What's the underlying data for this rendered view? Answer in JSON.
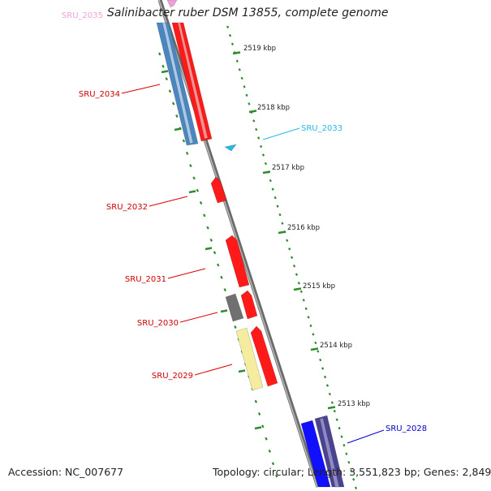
{
  "title": "Salinibacter ruber DSM 13855, complete genome",
  "footer": {
    "accession": "Accession: NC_007677",
    "summary": "Topology: circular; Length: 3,551,823 bp; Genes: 2,849"
  },
  "colors": {
    "backbone": "#8a8a8a",
    "tick_green": "#2e8b2e",
    "gene_red": "#ff1a1a",
    "gene_steelblue": "#4a86c0",
    "gene_gray": "#707070",
    "gene_yellow": "#f5eca0",
    "gene_blue": "#1010ff",
    "gene_purple": "#4a4490",
    "gene_cyan": "#22b8e8",
    "gene_pink": "#f0a0d8"
  },
  "kbp_labels": [
    "2519 kbp",
    "2518 kbp",
    "2517 kbp",
    "2516 kbp",
    "2515 kbp",
    "2514 kbp",
    "2513 kbp"
  ],
  "gene_labels": [
    {
      "id": "SRU_2035",
      "color": "#f0a0d8"
    },
    {
      "id": "SRU_2034",
      "color": "#cc0000"
    },
    {
      "id": "SRU_2033",
      "color": "#22b8e8"
    },
    {
      "id": "SRU_2032",
      "color": "#cc0000"
    },
    {
      "id": "SRU_2031",
      "color": "#cc0000"
    },
    {
      "id": "SRU_2030",
      "color": "#cc0000"
    },
    {
      "id": "SRU_2029",
      "color": "#cc0000"
    },
    {
      "id": "SRU_2028",
      "color": "#0000cc"
    }
  ]
}
